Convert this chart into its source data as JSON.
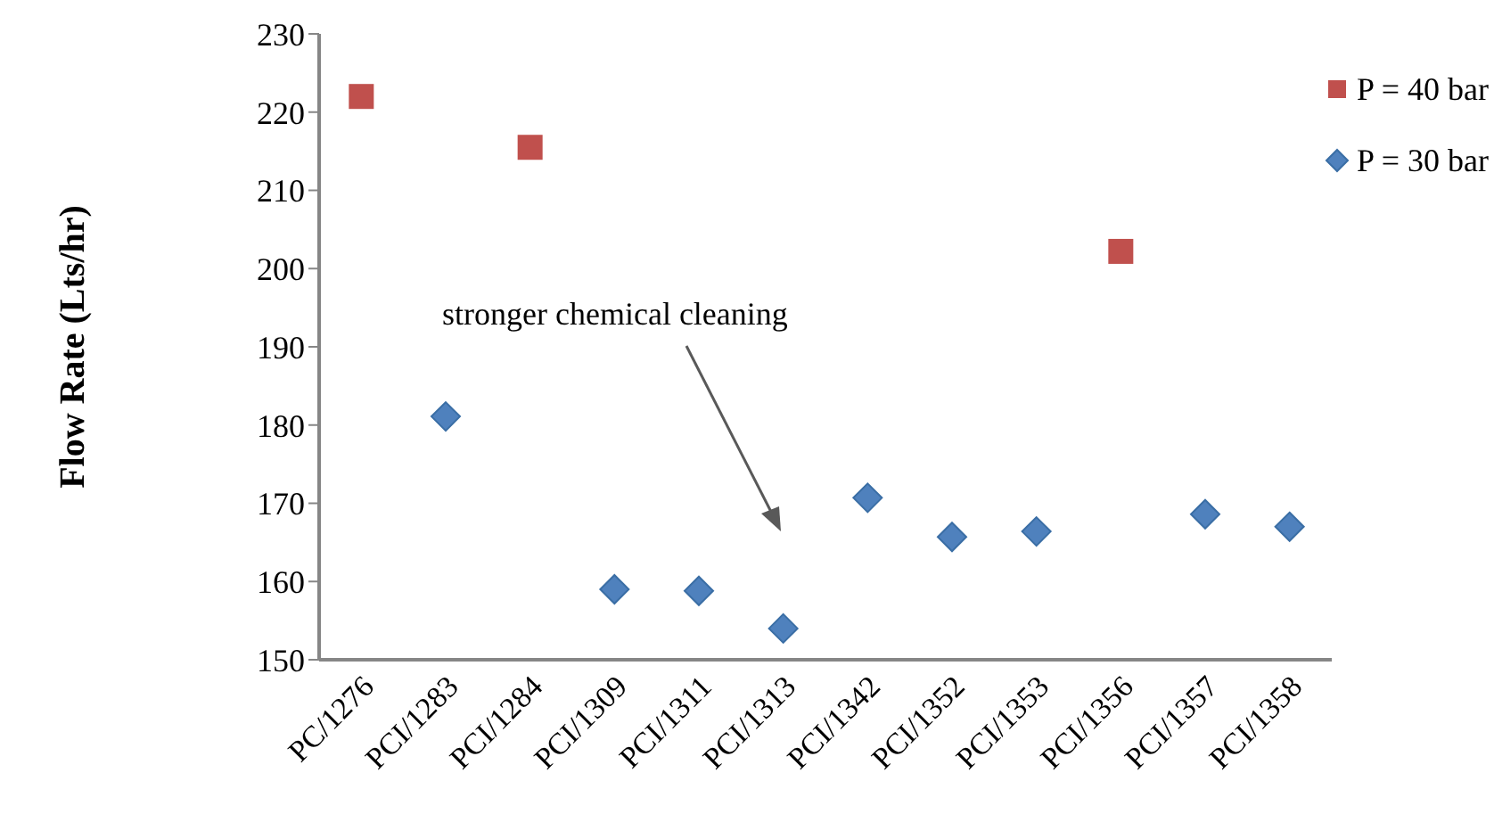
{
  "chart_data": {
    "type": "scatter",
    "ylabel": "Flow Rate (Lts/hr)",
    "categories": [
      "PC/1276",
      "PCI/1283",
      "PCI/1284",
      "PCI/1309",
      "PCI/1311",
      "PCI/1313",
      "PCI/1342",
      "PCI/1352",
      "PCI/1353",
      "PCI/1356",
      "PCI/1357",
      "PCI/1358"
    ],
    "series": [
      {
        "name": "P = 40 bar",
        "color": "#c0504d",
        "marker": "square",
        "values": [
          222,
          null,
          215.5,
          null,
          null,
          null,
          null,
          null,
          null,
          202.2,
          null,
          null
        ]
      },
      {
        "name": "P = 30 bar",
        "color": "#4f81bd",
        "marker": "diamond",
        "values": [
          null,
          181.1,
          null,
          159,
          158.8,
          154,
          170.7,
          165.7,
          166.4,
          null,
          168.6,
          167
        ]
      }
    ],
    "ylim": [
      150,
      230
    ],
    "yticks": [
      150,
      160,
      170,
      180,
      190,
      200,
      210,
      220,
      230
    ],
    "grid": false,
    "legend": "top right",
    "annotations": [
      "stronger chemical cleaning"
    ]
  }
}
